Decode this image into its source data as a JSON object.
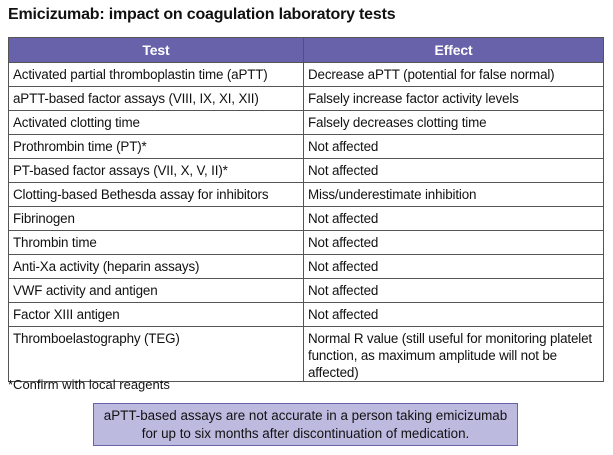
{
  "title": "Emicizumab: impact on coagulation laboratory tests",
  "table": {
    "headers": [
      "Test",
      "Effect"
    ],
    "rows": [
      {
        "test": "Activated partial thromboplastin time (aPTT)",
        "effect": "Decrease aPTT (potential for false normal)"
      },
      {
        "test": "aPTT-based factor assays (VIII, IX, XI, XII)",
        "effect": "Falsely increase factor activity levels"
      },
      {
        "test": "Activated clotting time",
        "effect": "Falsely decreases clotting time"
      },
      {
        "test": "Prothrombin time (PT)*",
        "effect": "Not affected"
      },
      {
        "test": "PT-based factor assays (VII, X, V, II)*",
        "effect": "Not affected"
      },
      {
        "test": "Clotting-based Bethesda assay for inhibitors",
        "effect": "Miss/underestimate inhibition"
      },
      {
        "test": "Fibrinogen",
        "effect": "Not affected"
      },
      {
        "test": "Thrombin time",
        "effect": "Not affected"
      },
      {
        "test": "Anti-Xa activity (heparin assays)",
        "effect": "Not affected"
      },
      {
        "test": "VWF activity and antigen",
        "effect": "Not affected"
      },
      {
        "test": "Factor XIII antigen",
        "effect": "Not affected"
      },
      {
        "test": "Thromboelastography (TEG)",
        "effect": "Normal R value (still useful for monitoring platelet function, as maximum amplitude will not be affected)"
      }
    ]
  },
  "footnote": "*Confirm with local reagents",
  "note": {
    "line1": "aPTT-based assays are not accurate in a person taking emicizumab",
    "line2": "for up to six months after discontinuation of medication."
  },
  "colors": {
    "header_bg": "#6762a9",
    "note_bg": "#bdbae0"
  }
}
